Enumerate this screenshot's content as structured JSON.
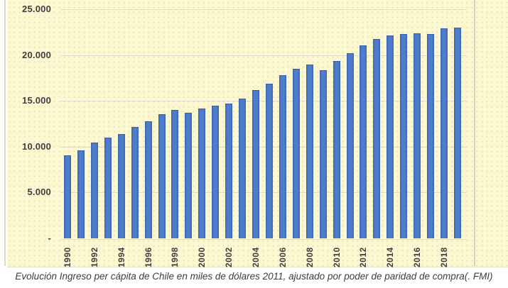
{
  "caption": "Evolución Ingreso per cápita de Chile en miles de dólares 2011, ajustado por poder de paridad de compra(. FMI)",
  "chart_data": {
    "type": "bar",
    "title": "",
    "xlabel": "",
    "ylabel": "",
    "x": [
      1990,
      1991,
      1992,
      1993,
      1994,
      1995,
      1996,
      1997,
      1998,
      1999,
      2000,
      2001,
      2002,
      2003,
      2004,
      2005,
      2006,
      2007,
      2008,
      2009,
      2010,
      2011,
      2012,
      2013,
      2014,
      2015,
      2016,
      2017,
      2018,
      2019
    ],
    "values": [
      9000,
      9550,
      10400,
      10950,
      11300,
      12050,
      12700,
      13450,
      13950,
      13600,
      14100,
      14400,
      14650,
      15200,
      16100,
      16800,
      17700,
      18450,
      18850,
      18300,
      19250,
      20100,
      21000,
      21700,
      22050,
      22200,
      22300,
      22250,
      22800,
      22950
    ],
    "ylim": [
      0,
      25000
    ],
    "yticks": [
      {
        "value": 0,
        "label": "-"
      },
      {
        "value": 5000,
        "label": "5.000"
      },
      {
        "value": 10000,
        "label": "10.000"
      },
      {
        "value": 15000,
        "label": "15.000"
      },
      {
        "value": 20000,
        "label": "20.000"
      },
      {
        "value": 25000,
        "label": "25.000"
      }
    ],
    "xtick_labels": [
      "1990",
      "1992",
      "1994",
      "1996",
      "1998",
      "2000",
      "2002",
      "2004",
      "2006",
      "2008",
      "2010",
      "2012",
      "2014",
      "2016",
      "2018"
    ],
    "grid": true,
    "legend": "none",
    "bar_color": "#4472C4",
    "background_color": "#FBF8D2",
    "gridline_color": "#DDDBCE",
    "axis_text_color": "#404040"
  }
}
